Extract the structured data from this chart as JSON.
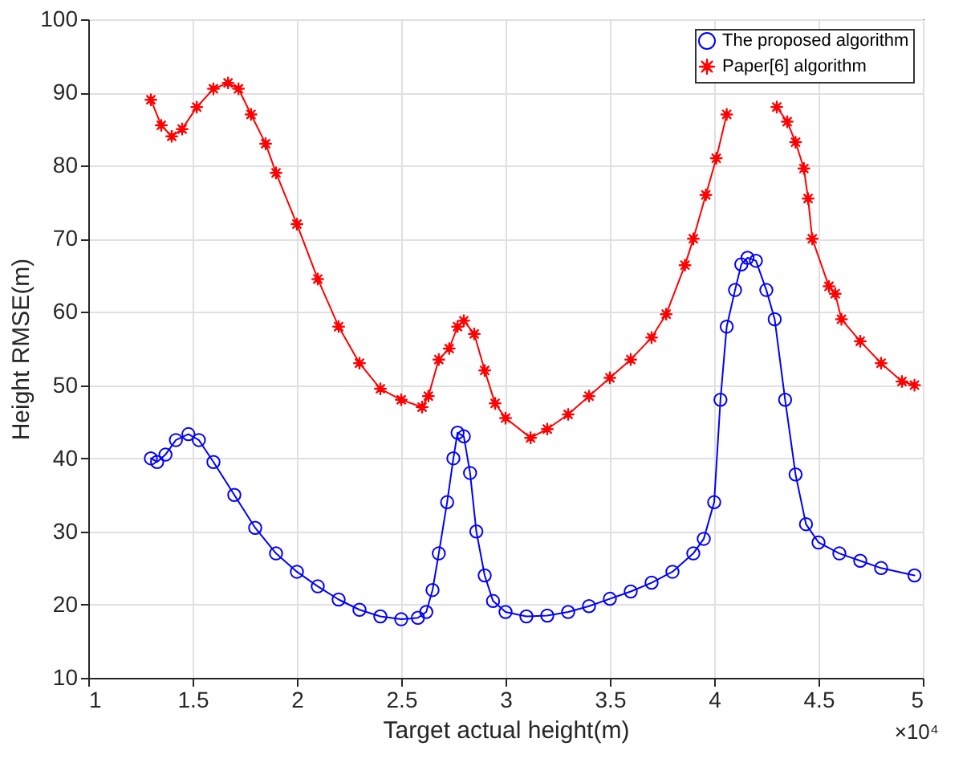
{
  "chart_data": {
    "type": "line",
    "xlabel": "Target actual height(m)",
    "ylabel": "Height RMSE(m)",
    "xlim": [
      1,
      5
    ],
    "xticks": [
      1,
      1.5,
      2,
      2.5,
      3,
      3.5,
      4,
      4.5,
      5
    ],
    "ylim": [
      10,
      100
    ],
    "yticks": [
      10,
      20,
      30,
      40,
      50,
      60,
      70,
      80,
      90,
      100
    ],
    "grid": true,
    "legend": "top right",
    "line_style": "solid",
    "annotations": [
      "×10⁴"
    ],
    "series": [
      {
        "name": "The proposed algorithm",
        "color": "#0000ff",
        "marker": "circle",
        "x": [
          1.3,
          1.33,
          1.37,
          1.42,
          1.48,
          1.53,
          1.6,
          1.7,
          1.8,
          1.9,
          2.0,
          2.1,
          2.2,
          2.3,
          2.4,
          2.5,
          2.58,
          2.62,
          2.65,
          2.68,
          2.72,
          2.75,
          2.77,
          2.8,
          2.83,
          2.86,
          2.9,
          2.94,
          3.0,
          3.1,
          3.2,
          3.3,
          3.4,
          3.5,
          3.6,
          3.7,
          3.8,
          3.9,
          3.95,
          4.0,
          4.03,
          4.06,
          4.1,
          4.13,
          4.16,
          4.2,
          4.25,
          4.29,
          4.34,
          4.39,
          4.44,
          4.5,
          4.6,
          4.7,
          4.8,
          4.96
        ],
        "values": [
          40,
          39.5,
          40.5,
          42.5,
          43.3,
          42.5,
          39.5,
          35,
          30.5,
          27,
          24.5,
          22.5,
          20.7,
          19.3,
          18.4,
          18,
          18.2,
          19,
          22,
          27,
          34,
          40,
          43.5,
          43,
          38,
          30,
          24,
          20.5,
          19,
          18.4,
          18.5,
          19,
          19.8,
          20.8,
          21.8,
          23,
          24.5,
          27,
          29,
          34,
          48,
          58,
          63,
          66.5,
          67.4,
          67,
          63,
          59,
          48,
          37.8,
          31,
          28.5,
          27,
          26,
          25,
          24
        ]
      },
      {
        "name": "Paper[6] algorithm",
        "color": "#ff0000",
        "marker": "star",
        "x": [
          1.3,
          1.35,
          1.4,
          1.45,
          1.52,
          1.6,
          1.67,
          1.72,
          1.78,
          1.85,
          1.9,
          2.0,
          2.1,
          2.2,
          2.3,
          2.4,
          2.5,
          2.6,
          2.63,
          2.68,
          2.73,
          2.77,
          2.8,
          2.85,
          2.9,
          2.95,
          3.0,
          3.12,
          3.2,
          3.3,
          3.4,
          3.5,
          3.6,
          3.7,
          3.77,
          3.86,
          3.9,
          3.96,
          4.01,
          4.06,
          4.08,
          4.2,
          4.3,
          4.35,
          4.39,
          4.43,
          4.45,
          4.47,
          4.55,
          4.58,
          4.61,
          4.7,
          4.8,
          4.9,
          4.96
        ],
        "values": [
          89,
          85.5,
          84,
          85,
          88,
          90.5,
          91.3,
          90.5,
          87,
          83,
          79,
          72,
          64.5,
          58,
          53,
          49.5,
          48,
          47,
          48.5,
          53.5,
          55,
          58,
          58.8,
          57,
          52,
          47.5,
          45.5,
          42.8,
          44,
          46,
          48.5,
          51,
          53.5,
          56.5,
          59.7,
          66.4,
          70,
          76,
          81,
          87,
          null,
          null,
          88,
          86,
          83.2,
          79.6,
          75.5,
          70,
          63.5,
          62.5,
          59,
          56,
          53,
          50.5,
          50
        ]
      }
    ]
  }
}
